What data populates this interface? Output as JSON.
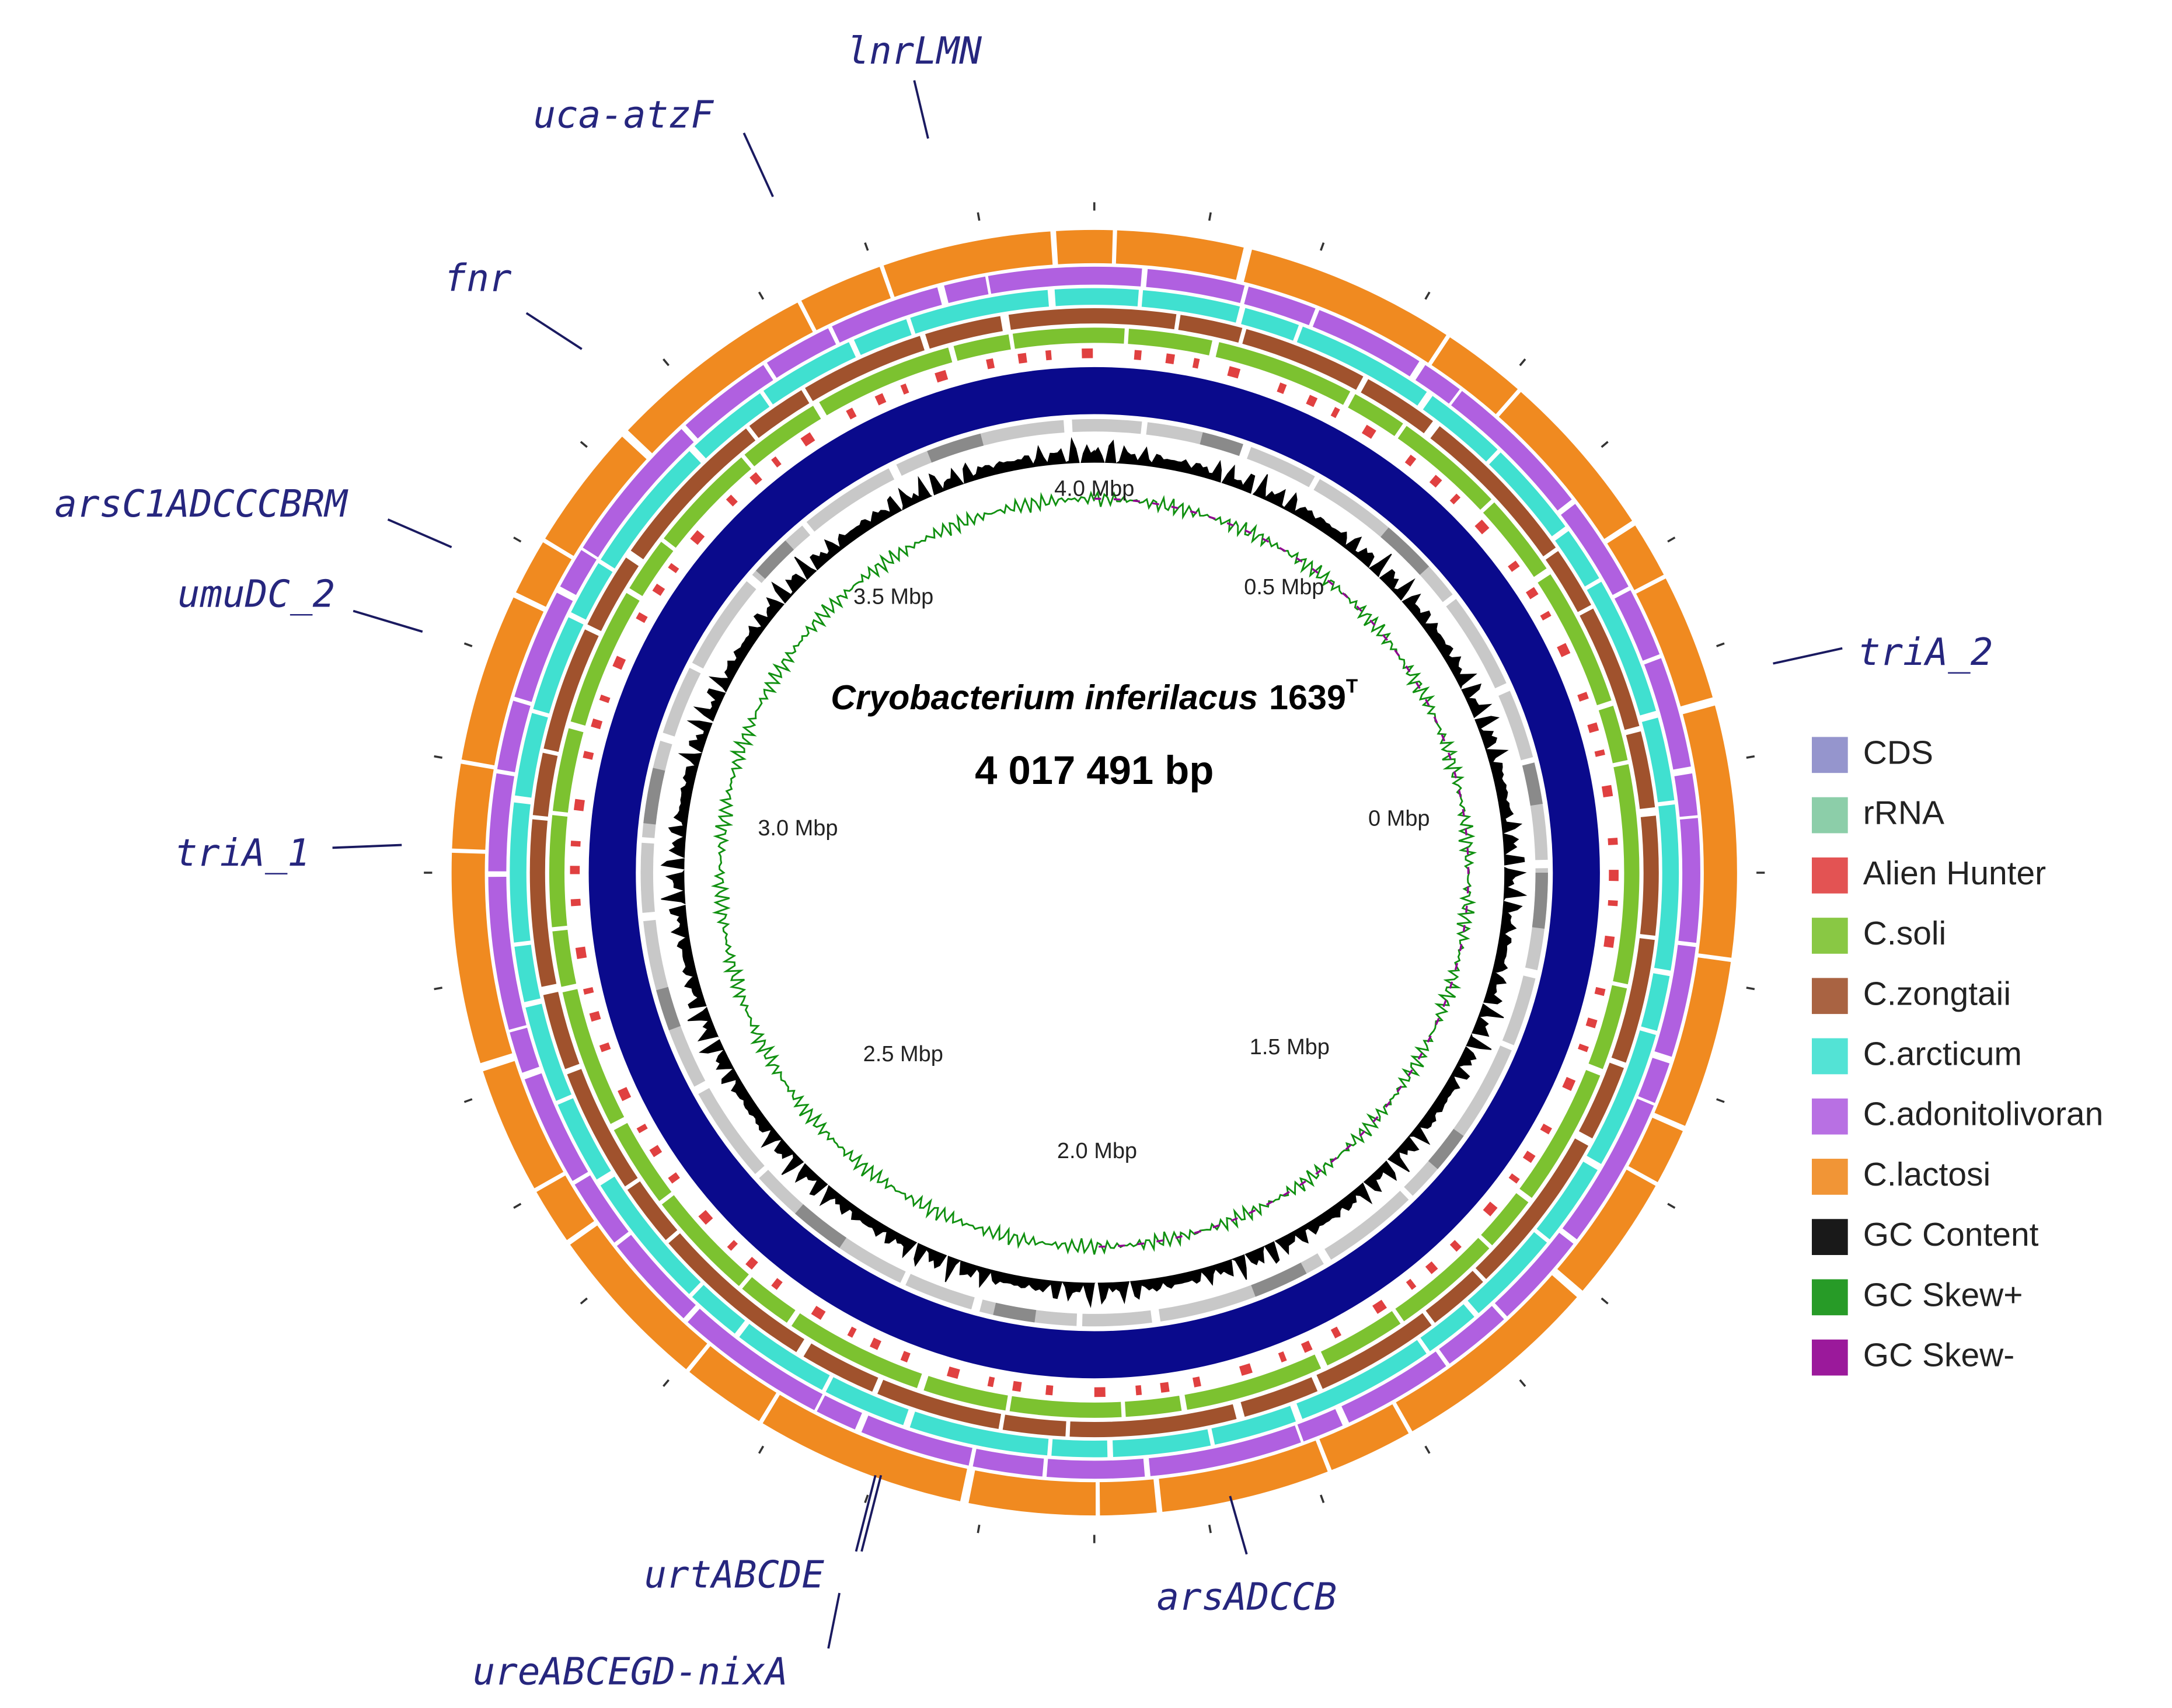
{
  "title": {
    "species": "Cryobacterium inferilacus",
    "strain": "1639",
    "superscript": "T"
  },
  "genome_size": "4 017 491 bp",
  "scale_labels": [
    "4.0 Mbp",
    "0.5 Mbp",
    "0 Mbp",
    "1.5 Mbp",
    "2.0 Mbp",
    "2.5 Mbp",
    "3.0 Mbp",
    "3.5 Mbp"
  ],
  "gene_labels": [
    "lnrLMN",
    "uca-atzF",
    "fnr",
    "arsC1ADCCCBRM",
    "umuDC_2",
    "triA_2",
    "triA_1",
    "urtABCDE",
    "ureABCEGD-nixA",
    "arsADCCB"
  ],
  "legend": [
    {
      "label": "CDS",
      "color": "#8a8ac8"
    },
    {
      "label": "rRNA",
      "color": "#7fc9a0"
    },
    {
      "label": "Alien Hunter",
      "color": "#e04040"
    },
    {
      "label": "C.soli",
      "color": "#7cc230"
    },
    {
      "label": "C.zongtaii",
      "color": "#a0522d"
    },
    {
      "label": "C.arcticum",
      "color": "#40e0d0"
    },
    {
      "label": "C.adonitolivoran",
      "color": "#b060e0"
    },
    {
      "label": "C.lactosi",
      "color": "#f08a20"
    },
    {
      "label": "GC Content",
      "color": "#000000"
    },
    {
      "label": "GC Skew+",
      "color": "#109010"
    },
    {
      "label": "GC Skew-",
      "color": "#900090"
    }
  ]
}
